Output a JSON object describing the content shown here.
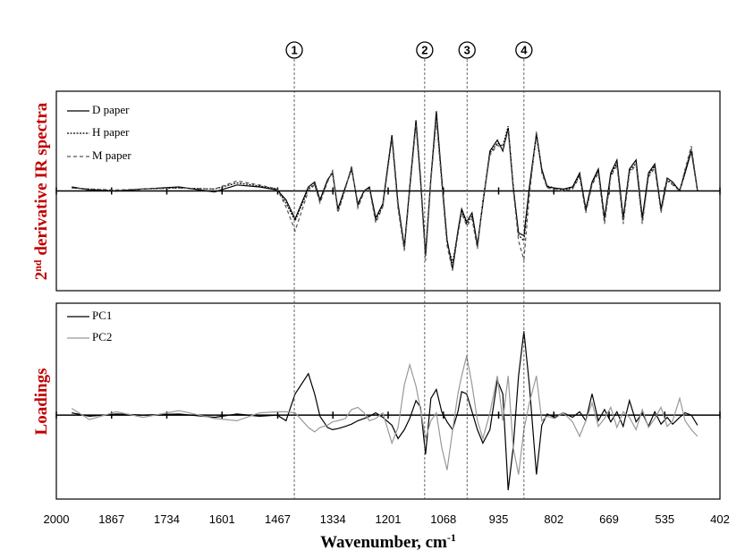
{
  "chart_data": [
    {
      "type": "line",
      "ylabel": [
        "2",
        "nd",
        " derivative IR spectra"
      ],
      "xlim": [
        2000,
        402
      ],
      "ylim": [
        -1,
        1
      ],
      "xticks": [
        2000,
        1867,
        1734,
        1601,
        1467,
        1334,
        1201,
        1068,
        935,
        802,
        669,
        535,
        402
      ],
      "x": [
        1963,
        1920,
        1856,
        1791,
        1705,
        1619,
        1565,
        1511,
        1468,
        1447,
        1425,
        1393,
        1378,
        1365,
        1347,
        1335,
        1322,
        1304,
        1289,
        1274,
        1259,
        1246,
        1231,
        1214,
        1192,
        1177,
        1162,
        1149,
        1134,
        1123,
        1111,
        1098,
        1085,
        1072,
        1059,
        1046,
        1033,
        1024,
        1012,
        999,
        986,
        973,
        956,
        938,
        925,
        912,
        900,
        887,
        874,
        861,
        844,
        831,
        818,
        800,
        779,
        757,
        740,
        725,
        710,
        695,
        680,
        665,
        650,
        635,
        620,
        604,
        589,
        574,
        559,
        544,
        529,
        516,
        499,
        486,
        471,
        456
      ],
      "series": [
        {
          "name": "D paper",
          "color": "#000000",
          "dash": "none",
          "values": [
            0.04,
            0.01,
            0,
            0.02,
            0.04,
            -0.01,
            0.06,
            0.04,
            0.01,
            -0.09,
            -0.28,
            0.04,
            0.09,
            -0.09,
            0.11,
            0.18,
            -0.18,
            0.04,
            0.22,
            -0.13,
            0,
            0.04,
            -0.27,
            -0.13,
            0.56,
            -0.13,
            -0.56,
            0.04,
            0.71,
            0.13,
            -0.65,
            0.13,
            0.8,
            0.13,
            -0.49,
            -0.78,
            -0.4,
            -0.18,
            -0.31,
            -0.22,
            -0.54,
            -0.13,
            0.4,
            0.51,
            0.4,
            0.63,
            0.04,
            -0.42,
            -0.45,
            0.04,
            0.58,
            0.22,
            0.04,
            0.03,
            0.02,
            0.04,
            0.18,
            -0.18,
            0.09,
            0.22,
            -0.27,
            0.18,
            0.31,
            -0.27,
            0.22,
            0.31,
            -0.27,
            0.18,
            0.27,
            -0.18,
            0.13,
            0.09,
            0,
            0.18,
            0.4,
            0
          ]
        },
        {
          "name": "H paper",
          "color": "#000000",
          "dash": "2,1.5",
          "values": [
            0.03,
            0.02,
            0,
            0.02,
            0.03,
            0.02,
            0.08,
            0.05,
            0.02,
            -0.12,
            -0.3,
            0.02,
            0.07,
            -0.1,
            0.1,
            0.2,
            -0.2,
            0.03,
            0.24,
            -0.15,
            0,
            0.03,
            -0.29,
            -0.15,
            0.54,
            -0.15,
            -0.58,
            0.02,
            0.68,
            0.1,
            -0.62,
            0.12,
            0.74,
            0.1,
            -0.52,
            -0.72,
            -0.42,
            -0.2,
            -0.33,
            -0.25,
            -0.56,
            -0.1,
            0.38,
            0.48,
            0.45,
            0.65,
            0.06,
            -0.44,
            -0.5,
            0.02,
            0.55,
            0.2,
            0.05,
            0.03,
            0.01,
            0.03,
            0.16,
            -0.2,
            0.08,
            0.2,
            -0.3,
            0.16,
            0.28,
            -0.3,
            0.2,
            0.28,
            -0.3,
            0.16,
            0.25,
            -0.2,
            0.11,
            0.07,
            0.01,
            0.2,
            0.42,
            0
          ]
        },
        {
          "name": "M paper",
          "color": "#555555",
          "dash": "4,3",
          "values": [
            0.03,
            0.02,
            0.01,
            0.02,
            0.03,
            0.02,
            0.1,
            0.06,
            0.02,
            -0.16,
            -0.4,
            0,
            0.06,
            -0.12,
            0.09,
            0.2,
            -0.22,
            0.02,
            0.25,
            -0.17,
            -0.01,
            0.02,
            -0.32,
            -0.16,
            0.52,
            -0.18,
            -0.6,
            0,
            0.66,
            0.08,
            -0.7,
            0.1,
            0.72,
            0.08,
            -0.55,
            -0.8,
            -0.44,
            -0.22,
            -0.35,
            -0.28,
            -0.58,
            -0.12,
            0.36,
            0.46,
            0.42,
            0.6,
            0.02,
            -0.5,
            -0.69,
            -0.05,
            0.6,
            0.18,
            0.03,
            0.02,
            0,
            0.02,
            0.14,
            -0.22,
            0.06,
            0.18,
            -0.33,
            0.14,
            0.26,
            -0.33,
            0.18,
            0.26,
            -0.33,
            0.14,
            0.23,
            -0.22,
            0.1,
            0.06,
            0,
            0.22,
            0.45,
            0.01
          ]
        }
      ]
    },
    {
      "type": "line",
      "ylabel": [
        "Loadings"
      ],
      "xlabel": [
        "Wavenumber, cm",
        "-1"
      ],
      "xlim": [
        2000,
        402
      ],
      "ylim": [
        -0.75,
        1
      ],
      "xticks": [
        2000,
        1867,
        1734,
        1601,
        1467,
        1334,
        1201,
        1068,
        935,
        802,
        669,
        535,
        402
      ],
      "x": [
        1963,
        1920,
        1856,
        1791,
        1705,
        1619,
        1565,
        1511,
        1468,
        1447,
        1425,
        1393,
        1378,
        1365,
        1347,
        1335,
        1322,
        1304,
        1289,
        1274,
        1259,
        1246,
        1231,
        1214,
        1192,
        1177,
        1162,
        1149,
        1134,
        1123,
        1111,
        1098,
        1085,
        1072,
        1059,
        1046,
        1033,
        1024,
        1012,
        999,
        986,
        973,
        956,
        938,
        925,
        912,
        900,
        887,
        874,
        861,
        844,
        831,
        818,
        800,
        779,
        757,
        740,
        725,
        710,
        695,
        680,
        665,
        650,
        635,
        620,
        604,
        589,
        574,
        559,
        544,
        529,
        516,
        499,
        486,
        471,
        456
      ],
      "series": [
        {
          "name": "PC1",
          "color": "#000000",
          "dash": "none",
          "values": [
            0.02,
            -0.01,
            0.01,
            0,
            0.01,
            -0.02,
            0.01,
            -0.01,
            0,
            -0.05,
            0.19,
            0.37,
            0.19,
            -0.01,
            -0.11,
            -0.13,
            -0.12,
            -0.1,
            -0.08,
            -0.05,
            -0.03,
            -0.01,
            0.02,
            -0.02,
            -0.09,
            -0.21,
            -0.13,
            -0.03,
            0.13,
            0.07,
            -0.35,
            0.15,
            0.23,
            0.03,
            -0.06,
            -0.13,
            0.03,
            0.21,
            0.19,
            0.03,
            -0.13,
            -0.25,
            -0.13,
            0.31,
            0.19,
            -0.67,
            -0.29,
            0.35,
            0.75,
            0.27,
            -0.53,
            -0.09,
            0.01,
            -0.02,
            0.02,
            -0.02,
            0.03,
            -0.05,
            0.19,
            -0.05,
            0.05,
            -0.06,
            0.03,
            -0.1,
            0.13,
            -0.06,
            0.02,
            -0.1,
            0.03,
            -0.08,
            -0.02,
            -0.08,
            -0.02,
            0.02,
            0,
            -0.09
          ]
        },
        {
          "name": "PC2",
          "color": "#999999",
          "dash": "none",
          "values": [
            0.06,
            -0.04,
            0.03,
            -0.02,
            0.04,
            -0.03,
            -0.05,
            0.02,
            0.03,
            0.03,
            0.02,
            -0.11,
            -0.15,
            -0.11,
            -0.09,
            -0.06,
            -0.05,
            -0.03,
            0.05,
            0.07,
            0.02,
            -0.05,
            -0.03,
            0.02,
            -0.25,
            -0.11,
            0.27,
            0.45,
            0.26,
            0.05,
            -0.21,
            -0.05,
            0.02,
            -0.29,
            -0.49,
            -0.14,
            0.19,
            0.35,
            0.53,
            0.27,
            -0.05,
            -0.21,
            0.02,
            0.35,
            -0.05,
            0.35,
            -0.29,
            -0.53,
            -0.13,
            0.11,
            0.35,
            -0.05,
            -0.01,
            -0.03,
            0.02,
            -0.06,
            -0.19,
            -0.05,
            0.11,
            -0.1,
            -0.03,
            0.07,
            -0.11,
            0.03,
            -0.02,
            -0.13,
            0.05,
            -0.11,
            -0.03,
            0.07,
            -0.1,
            -0.05,
            0.15,
            -0.05,
            -0.13,
            -0.19
          ]
        }
      ]
    }
  ],
  "annotations": [
    {
      "label": "1",
      "x": 1427
    },
    {
      "label": "2",
      "x": 1113
    },
    {
      "label": "3",
      "x": 1011
    },
    {
      "label": "4",
      "x": 874
    }
  ]
}
